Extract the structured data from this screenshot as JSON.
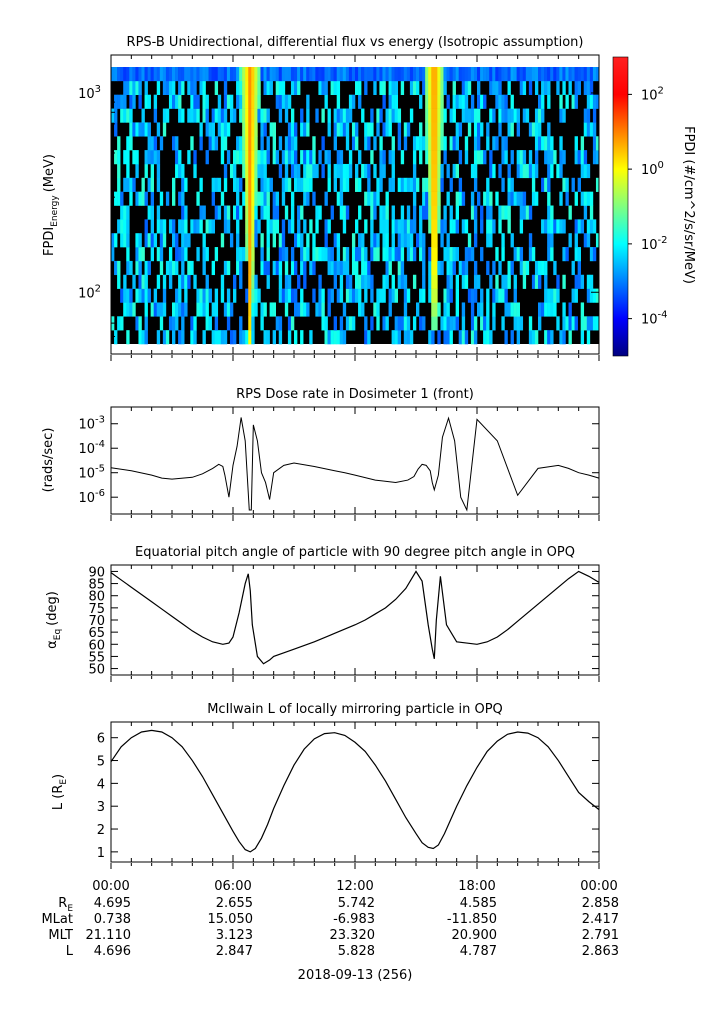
{
  "chart_data": [
    {
      "type": "heatmap",
      "title": "RPS-B  Unidirectional, differential flux vs energy (Isotropic assumption)",
      "ylabel": {
        "main": "FPDI",
        "sub": "Energy",
        "unit": "(MeV)"
      },
      "yscale": "log",
      "ylim": [
        55,
        1350
      ],
      "yticks": [
        {
          "value": 100,
          "base": "10",
          "exp": "2"
        },
        {
          "value": 1000,
          "base": "10",
          "exp": "3"
        }
      ],
      "xlim_hours": [
        0,
        24
      ],
      "x": [
        0,
        1,
        2,
        3,
        4,
        5,
        5.5,
        5.75,
        6,
        6.25,
        6.5,
        6.75,
        7,
        7.25,
        7.5,
        8,
        9,
        10,
        11,
        12,
        13,
        14,
        14.5,
        15,
        15.25,
        15.5,
        15.75,
        16,
        16.25,
        16.5,
        17,
        18,
        19,
        20,
        21,
        22,
        23,
        24
      ],
      "band_centers_hours": [
        6.85,
        15.9
      ],
      "band_values_1_per_cm2_s_sr_MeV": [
        10,
        10
      ],
      "background_level": "mixed 1e-3 to 1e-2 with many empty bins (black)",
      "colorbar": {
        "label": "FPDI (#/cm^2/s/sr/MeV)",
        "scale": "log",
        "range": [
          1e-05,
          1000
        ],
        "ticks": [
          {
            "value": 100,
            "base": "10",
            "exp": "2"
          },
          {
            "value": 1,
            "base": "10",
            "exp": "0"
          },
          {
            "value": 0.01,
            "base": "10",
            "exp": "-2"
          },
          {
            "value": 0.0001,
            "base": "10",
            "exp": "-4"
          }
        ],
        "colors": [
          "#00007f",
          "#0000ff",
          "#0080ff",
          "#00ffff",
          "#80ff80",
          "#ffff00",
          "#ff8000",
          "#ff0000",
          "#ff2020"
        ]
      }
    },
    {
      "type": "line",
      "title": "RPS  Dose rate in Dosimeter 1 (front)",
      "ylabel": "(rads/sec)",
      "yscale": "log",
      "ylim": [
        3e-07,
        0.0025
      ],
      "yticks": [
        {
          "value": 0.001,
          "base": "10",
          "exp": "-3"
        },
        {
          "value": 0.0001,
          "base": "10",
          "exp": "-4"
        },
        {
          "value": 1e-05,
          "base": "10",
          "exp": "-5"
        },
        {
          "value": 1e-06,
          "base": "10",
          "exp": "-6"
        }
      ],
      "x": [
        0,
        1,
        2,
        2.5,
        3,
        4,
        4.5,
        5,
        5.3,
        5.5,
        5.6,
        5.8,
        6,
        6.2,
        6.4,
        6.6,
        6.8,
        6.9,
        7,
        7.2,
        7.4,
        7.6,
        7.8,
        8,
        8.5,
        9,
        10,
        11,
        11.5,
        12,
        13,
        14,
        14.6,
        14.9,
        15.1,
        15.3,
        15.5,
        15.7,
        15.8,
        15.9,
        16.1,
        16.3,
        16.6,
        16.9,
        17.2,
        17.5,
        18,
        19,
        20,
        21,
        22,
        22.5,
        23,
        23.5,
        24
      ],
      "y": [
        1.6e-05,
        1.2e-05,
        8e-06,
        6e-06,
        5.5e-06,
        6.5e-06,
        9e-06,
        1.5e-05,
        2.2e-05,
        1.8e-05,
        8e-06,
        1e-06,
        2e-05,
        0.00012,
        0.0018,
        0.0002,
        3e-07,
        3e-07,
        0.0009,
        0.0002,
        1e-05,
        4e-06,
        8e-07,
        1e-05,
        2e-05,
        2.5e-05,
        1.8e-05,
        1.2e-05,
        1e-05,
        8e-06,
        5e-06,
        4e-06,
        5e-06,
        7e-06,
        1.4e-05,
        2.2e-05,
        2e-05,
        1.2e-05,
        4e-06,
        2e-06,
        8e-06,
        0.00028,
        0.0017,
        0.0002,
        1e-06,
        3e-07,
        0.0015,
        0.0002,
        1.2e-06,
        1.5e-05,
        2e-05,
        1.5e-05,
        1e-05,
        8e-06,
        6e-06
      ]
    },
    {
      "type": "line",
      "title": "Equatorial pitch angle of particle with 90 degree pitch angle in OPQ",
      "ylabel": {
        "main": "α",
        "sub": "Eq",
        "unit": "(deg)"
      },
      "ylim": [
        49,
        91
      ],
      "yticks": [
        90,
        85,
        80,
        75,
        70,
        65,
        60,
        55,
        50
      ],
      "x": [
        0,
        0.5,
        1,
        1.5,
        2,
        2.5,
        3,
        3.5,
        4,
        4.5,
        5,
        5.5,
        5.8,
        6,
        6.3,
        6.6,
        6.75,
        6.85,
        6.95,
        7.2,
        7.5,
        7.8,
        8,
        8.5,
        9,
        10,
        11,
        12,
        12.5,
        13,
        13.5,
        14,
        14.5,
        15,
        15.3,
        15.6,
        15.8,
        15.9,
        16,
        16.2,
        16.5,
        17,
        17.5,
        18,
        18.5,
        19,
        19.5,
        20,
        20.5,
        21,
        21.5,
        22,
        22.5,
        23,
        23.5,
        24
      ],
      "y": [
        89.5,
        86.5,
        83.5,
        80.5,
        77.5,
        74.5,
        71.5,
        68.5,
        65.5,
        63,
        61,
        60,
        60.5,
        63,
        73,
        85,
        89,
        82,
        68,
        55,
        52,
        53.5,
        55,
        56.5,
        58,
        61,
        64.5,
        68,
        70,
        72.5,
        75,
        78.5,
        83,
        90,
        86,
        68,
        58,
        54,
        70,
        88,
        68,
        61,
        60.5,
        60,
        61,
        63,
        66,
        69.5,
        73,
        76.5,
        80,
        83.5,
        87,
        90,
        88,
        85.5
      ]
    },
    {
      "type": "line",
      "title": "McIlwain L of locally mirroring particle in OPQ",
      "ylabel": {
        "main": "L (R",
        "sub": "E",
        "unit": ")"
      },
      "ylim": [
        0.6,
        6.6
      ],
      "yticks": [
        6,
        5,
        4,
        3,
        2,
        1
      ],
      "x": [
        0,
        0.5,
        1,
        1.5,
        2,
        2.5,
        3,
        3.5,
        4,
        4.5,
        5,
        5.5,
        6,
        6.3,
        6.6,
        6.85,
        7.1,
        7.4,
        7.7,
        8,
        8.5,
        9,
        9.5,
        10,
        10.5,
        11,
        11.5,
        12,
        12.5,
        13,
        13.5,
        14,
        14.5,
        15,
        15.3,
        15.6,
        15.85,
        16.1,
        16.4,
        16.7,
        17,
        17.5,
        18,
        18.5,
        19,
        19.5,
        20,
        20.5,
        21,
        21.5,
        22,
        22.5,
        23,
        23.5,
        24
      ],
      "y": [
        4.95,
        5.6,
        6.0,
        6.25,
        6.32,
        6.25,
        6.0,
        5.6,
        5.0,
        4.3,
        3.5,
        2.7,
        1.9,
        1.45,
        1.1,
        1.0,
        1.15,
        1.6,
        2.2,
        2.9,
        3.9,
        4.8,
        5.5,
        5.95,
        6.18,
        6.22,
        6.1,
        5.8,
        5.4,
        4.8,
        4.1,
        3.3,
        2.5,
        1.8,
        1.4,
        1.2,
        1.15,
        1.3,
        1.8,
        2.4,
        3.0,
        3.9,
        4.7,
        5.4,
        5.85,
        6.15,
        6.25,
        6.2,
        6.0,
        5.6,
        5.0,
        4.3,
        3.6,
        3.2,
        2.85
      ]
    }
  ],
  "time_axis": {
    "hours": [
      0,
      6,
      12,
      18,
      24
    ],
    "labels": [
      "00:00",
      "06:00",
      "12:00",
      "18:00",
      "00:00"
    ],
    "date_label": "2018-09-13 (256)"
  },
  "ephemeris": [
    {
      "label_main": "R",
      "label_sub": "E",
      "values": [
        "4.695",
        "2.655",
        "5.742",
        "4.585",
        "2.858"
      ]
    },
    {
      "label_main": "MLat",
      "label_sub": "",
      "values": [
        "0.738",
        "15.050",
        "-6.983",
        "-11.850",
        "2.417"
      ]
    },
    {
      "label_main": "MLT",
      "label_sub": "",
      "values": [
        "21.110",
        "3.123",
        "23.320",
        "20.900",
        "2.791"
      ]
    },
    {
      "label_main": "L",
      "label_sub": "",
      "values": [
        "4.696",
        "2.847",
        "5.828",
        "4.787",
        "2.863"
      ]
    }
  ]
}
